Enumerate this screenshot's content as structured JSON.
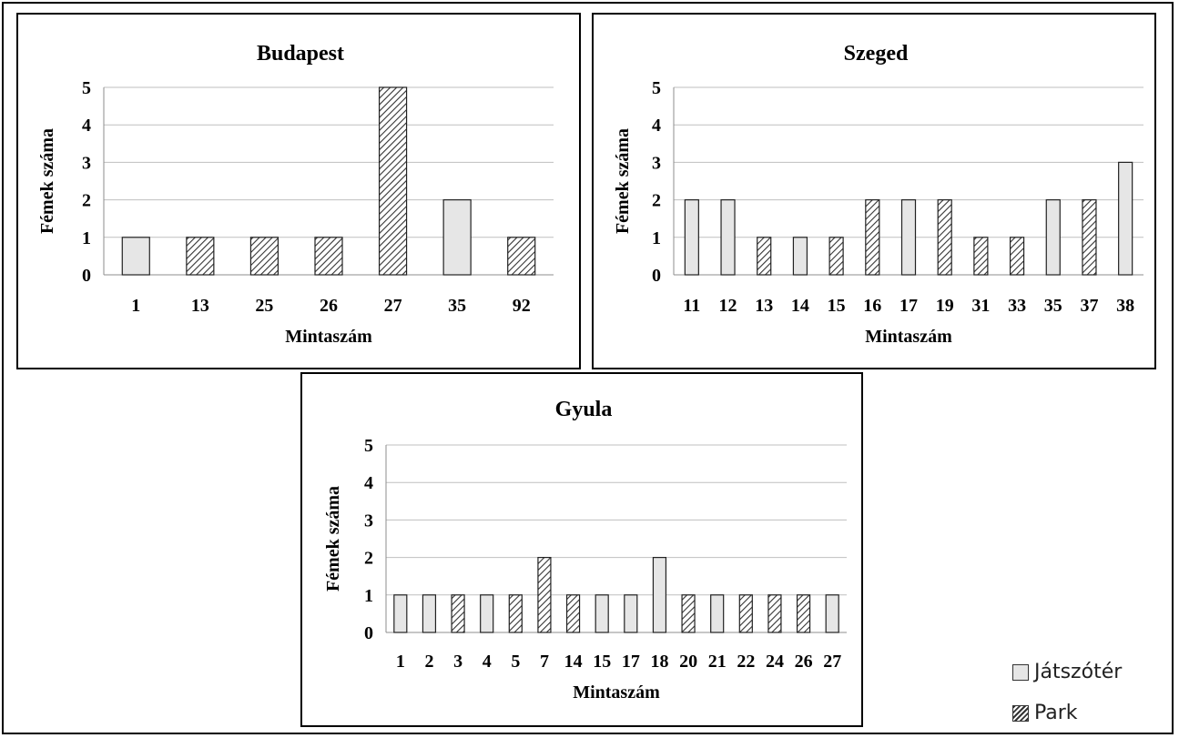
{
  "chart_data": [
    {
      "type": "bar",
      "title": "Budapest",
      "xlabel": "Mintaszám",
      "ylabel": "Fémek száma",
      "ylim": [
        0,
        5
      ],
      "yticks": [
        0,
        1,
        2,
        3,
        4,
        5
      ],
      "grid": true,
      "categories": [
        "1",
        "13",
        "25",
        "26",
        "27",
        "35",
        "92"
      ],
      "values": [
        1,
        1,
        1,
        1,
        5,
        2,
        1
      ],
      "kinds": [
        "Játszótér",
        "Park",
        "Park",
        "Park",
        "Park",
        "Játszótér",
        "Park"
      ]
    },
    {
      "type": "bar",
      "title": "Szeged",
      "xlabel": "Mintaszám",
      "ylabel": "Fémek száma",
      "ylim": [
        0,
        5
      ],
      "yticks": [
        0,
        1,
        2,
        3,
        4,
        5
      ],
      "grid": true,
      "categories": [
        "11",
        "12",
        "13",
        "14",
        "15",
        "16",
        "17",
        "19",
        "31",
        "33",
        "35",
        "37",
        "38"
      ],
      "values": [
        2,
        2,
        1,
        1,
        1,
        2,
        2,
        2,
        1,
        1,
        2,
        2,
        3
      ],
      "kinds": [
        "Játszótér",
        "Játszótér",
        "Park",
        "Játszótér",
        "Park",
        "Park",
        "Játszótér",
        "Park",
        "Park",
        "Park",
        "Játszótér",
        "Park",
        "Játszótér"
      ]
    },
    {
      "type": "bar",
      "title": "Gyula",
      "xlabel": "Mintaszám",
      "ylabel": "Fémek száma",
      "ylim": [
        0,
        5
      ],
      "yticks": [
        0,
        1,
        2,
        3,
        4,
        5
      ],
      "grid": true,
      "categories": [
        "1",
        "2",
        "3",
        "4",
        "5",
        "7",
        "14",
        "15",
        "17",
        "18",
        "20",
        "21",
        "22",
        "24",
        "26",
        "27"
      ],
      "values": [
        1,
        1,
        1,
        1,
        1,
        2,
        1,
        1,
        1,
        2,
        1,
        1,
        1,
        1,
        1,
        1
      ],
      "kinds": [
        "Játszótér",
        "Játszótér",
        "Park",
        "Játszótér",
        "Park",
        "Park",
        "Park",
        "Játszótér",
        "Játszótér",
        "Játszótér",
        "Park",
        "Játszótér",
        "Park",
        "Park",
        "Park",
        "Játszótér"
      ]
    }
  ],
  "legend": {
    "placement": "bottom-right",
    "items": [
      {
        "label": "Játszótér",
        "style": "solid",
        "color": "#e6e6e6"
      },
      {
        "label": "Park",
        "style": "hatched",
        "color": "#333333"
      }
    ]
  },
  "colors": {
    "bar_fill": "#e6e6e6",
    "hatch": "#333333",
    "grid": "#bfbfbf",
    "border": "#000000"
  }
}
